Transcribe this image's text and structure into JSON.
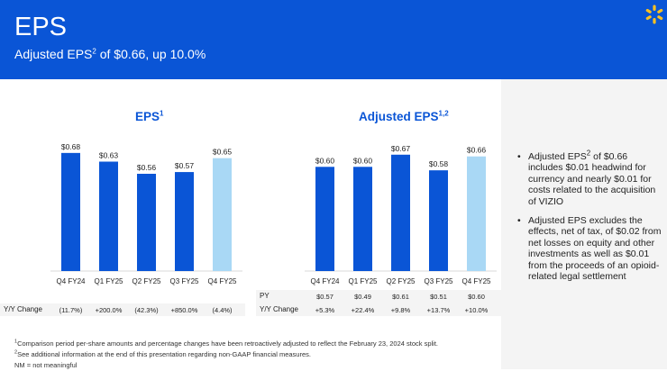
{
  "header": {
    "title": "EPS",
    "subtitle_prefix": "Adjusted EPS",
    "subtitle_sup": "2",
    "subtitle_suffix": " of $0.66, up 10.0%"
  },
  "chart_data": [
    {
      "type": "bar",
      "title": "EPS",
      "title_sup": "1",
      "categories": [
        "Q4 FY24",
        "Q1 FY25",
        "Q2 FY25",
        "Q3 FY25",
        "Q4 FY25"
      ],
      "values": [
        0.68,
        0.63,
        0.56,
        0.57,
        0.65
      ],
      "value_labels": [
        "$0.68",
        "$0.63",
        "$0.56",
        "$0.57",
        "$0.65"
      ],
      "highlight_last": true,
      "ylim": [
        0,
        0.7
      ],
      "colors": {
        "bar": "#0a55d6",
        "highlight": "#a9d8f5"
      },
      "table": [
        {
          "label": "Y/Y Change",
          "values": [
            "(11.7%)",
            "+200.0%",
            "(42.3%)",
            "+850.0%",
            "(4.4%)"
          ]
        }
      ]
    },
    {
      "type": "bar",
      "title": "Adjusted EPS",
      "title_sup": "1,2",
      "categories": [
        "Q4 FY24",
        "Q1 FY25",
        "Q2 FY25",
        "Q3 FY25",
        "Q4 FY25"
      ],
      "values": [
        0.6,
        0.6,
        0.67,
        0.58,
        0.66
      ],
      "value_labels": [
        "$0.60",
        "$0.60",
        "$0.67",
        "$0.58",
        "$0.66"
      ],
      "highlight_last": true,
      "ylim": [
        0,
        0.7
      ],
      "colors": {
        "bar": "#0a55d6",
        "highlight": "#a9d8f5"
      },
      "table": [
        {
          "label": "PY",
          "values": [
            "$0.57",
            "$0.49",
            "$0.61",
            "$0.51",
            "$0.60"
          ]
        },
        {
          "label": "Y/Y Change",
          "values": [
            "+5.3%",
            "+22.4%",
            "+9.8%",
            "+13.7%",
            "+10.0%"
          ]
        }
      ]
    }
  ],
  "bullets": [
    {
      "prefix": "Adjusted EPS",
      "sup": "2",
      "suffix": " of $0.66 includes $0.01 headwind for currency and nearly $0.01 for costs related to the acquisition of VIZIO"
    },
    {
      "prefix": "Adjusted EPS excludes the effects, net of tax, of $0.02 from net losses on equity and other investments as well as $0.01 from the proceeds of an opioid-related legal settlement",
      "sup": "",
      "suffix": ""
    }
  ],
  "footnotes": [
    {
      "sup": "1",
      "text": "Comparison period per-share amounts and percentage changes have been retroactively adjusted to reflect the February 23, 2024 stock split."
    },
    {
      "sup": "2",
      "text": "See additional information at the end of this presentation regarding non-GAAP financial measures."
    },
    {
      "sup": "",
      "text": "NM = not meaningful"
    }
  ],
  "logo": {
    "color": "#ffc220"
  }
}
